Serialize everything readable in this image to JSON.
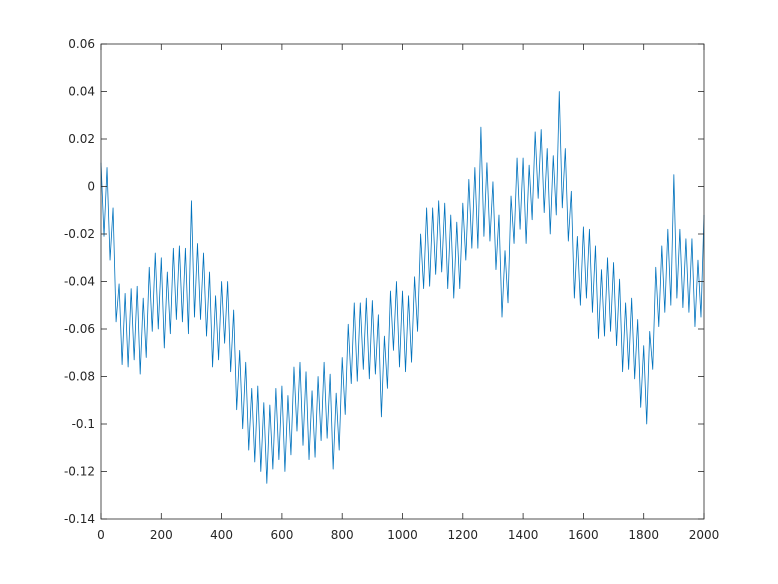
{
  "chart_data": {
    "type": "line",
    "x": [
      0,
      10,
      20,
      30,
      40,
      50,
      60,
      70,
      80,
      90,
      100,
      110,
      120,
      130,
      140,
      150,
      160,
      170,
      180,
      190,
      200,
      210,
      220,
      230,
      240,
      250,
      260,
      270,
      280,
      290,
      300,
      310,
      320,
      330,
      340,
      350,
      360,
      370,
      380,
      390,
      400,
      410,
      420,
      430,
      440,
      450,
      460,
      470,
      480,
      490,
      500,
      510,
      520,
      530,
      540,
      550,
      560,
      570,
      580,
      590,
      600,
      610,
      620,
      630,
      640,
      650,
      660,
      670,
      680,
      690,
      700,
      710,
      720,
      730,
      740,
      750,
      760,
      770,
      780,
      790,
      800,
      810,
      820,
      830,
      840,
      850,
      860,
      870,
      880,
      890,
      900,
      910,
      920,
      930,
      940,
      950,
      960,
      970,
      980,
      990,
      1000,
      1010,
      1020,
      1030,
      1040,
      1050,
      1060,
      1070,
      1080,
      1090,
      1100,
      1110,
      1120,
      1130,
      1140,
      1150,
      1160,
      1170,
      1180,
      1190,
      1200,
      1210,
      1220,
      1230,
      1240,
      1250,
      1260,
      1270,
      1280,
      1290,
      1300,
      1310,
      1320,
      1330,
      1340,
      1350,
      1360,
      1370,
      1380,
      1390,
      1400,
      1410,
      1420,
      1430,
      1440,
      1450,
      1460,
      1470,
      1480,
      1490,
      1500,
      1510,
      1520,
      1530,
      1540,
      1550,
      1560,
      1570,
      1580,
      1590,
      1600,
      1610,
      1620,
      1630,
      1640,
      1650,
      1660,
      1670,
      1680,
      1690,
      1700,
      1710,
      1720,
      1730,
      1740,
      1750,
      1760,
      1770,
      1780,
      1790,
      1800,
      1810,
      1820,
      1830,
      1840,
      1850,
      1860,
      1870,
      1880,
      1890,
      1900,
      1910,
      1920,
      1930,
      1940,
      1950,
      1960,
      1970,
      1980,
      1990,
      2000
    ],
    "series": [
      {
        "color": "#0072bd",
        "values": [
          0.01,
          -0.021,
          0.008,
          -0.031,
          -0.009,
          -0.057,
          -0.041,
          -0.075,
          -0.045,
          -0.076,
          -0.043,
          -0.073,
          -0.042,
          -0.079,
          -0.047,
          -0.072,
          -0.034,
          -0.061,
          -0.028,
          -0.06,
          -0.03,
          -0.068,
          -0.036,
          -0.062,
          -0.026,
          -0.056,
          -0.025,
          -0.057,
          -0.026,
          -0.062,
          -0.006,
          -0.055,
          -0.024,
          -0.056,
          -0.028,
          -0.063,
          -0.036,
          -0.076,
          -0.046,
          -0.073,
          -0.04,
          -0.066,
          -0.04,
          -0.078,
          -0.052,
          -0.094,
          -0.069,
          -0.102,
          -0.074,
          -0.111,
          -0.085,
          -0.116,
          -0.084,
          -0.12,
          -0.091,
          -0.125,
          -0.092,
          -0.119,
          -0.085,
          -0.115,
          -0.084,
          -0.12,
          -0.088,
          -0.113,
          -0.076,
          -0.103,
          -0.074,
          -0.109,
          -0.078,
          -0.115,
          -0.086,
          -0.114,
          -0.08,
          -0.107,
          -0.074,
          -0.106,
          -0.079,
          -0.119,
          -0.087,
          -0.111,
          -0.072,
          -0.096,
          -0.058,
          -0.083,
          -0.049,
          -0.082,
          -0.049,
          -0.077,
          -0.047,
          -0.081,
          -0.048,
          -0.079,
          -0.054,
          -0.097,
          -0.063,
          -0.085,
          -0.044,
          -0.069,
          -0.04,
          -0.076,
          -0.044,
          -0.078,
          -0.046,
          -0.074,
          -0.038,
          -0.061,
          -0.02,
          -0.043,
          -0.009,
          -0.042,
          -0.009,
          -0.037,
          -0.006,
          -0.036,
          -0.007,
          -0.043,
          -0.012,
          -0.047,
          -0.015,
          -0.043,
          -0.007,
          -0.031,
          0.003,
          -0.026,
          0.008,
          -0.026,
          0.025,
          -0.021,
          0.01,
          -0.023,
          0.002,
          -0.035,
          -0.012,
          -0.055,
          -0.027,
          -0.049,
          -0.004,
          -0.024,
          0.012,
          -0.018,
          0.012,
          -0.024,
          0.009,
          -0.014,
          0.023,
          -0.005,
          0.024,
          -0.011,
          0.016,
          -0.02,
          0.013,
          -0.012,
          0.04,
          -0.009,
          0.016,
          -0.023,
          -0.002,
          -0.047,
          -0.021,
          -0.05,
          -0.017,
          -0.047,
          -0.018,
          -0.053,
          -0.025,
          -0.064,
          -0.035,
          -0.063,
          -0.03,
          -0.061,
          -0.032,
          -0.067,
          -0.039,
          -0.078,
          -0.049,
          -0.077,
          -0.047,
          -0.081,
          -0.056,
          -0.093,
          -0.067,
          -0.1,
          -0.061,
          -0.077,
          -0.034,
          -0.059,
          -0.025,
          -0.053,
          -0.018,
          -0.05,
          0.005,
          -0.047,
          -0.018,
          -0.051,
          -0.022,
          -0.053,
          -0.022,
          -0.059,
          -0.031,
          -0.055,
          -0.012
        ]
      }
    ],
    "xlim": [
      0,
      2000
    ],
    "xticks": [
      0,
      200,
      400,
      600,
      800,
      1000,
      1200,
      1400,
      1600,
      1800,
      2000
    ],
    "ylim": [
      -0.14,
      0.06
    ],
    "yticks": [
      -0.14,
      -0.12,
      -0.1,
      -0.08,
      -0.06,
      -0.04,
      -0.02,
      0,
      0.02,
      0.04,
      0.06
    ],
    "grid": false
  }
}
